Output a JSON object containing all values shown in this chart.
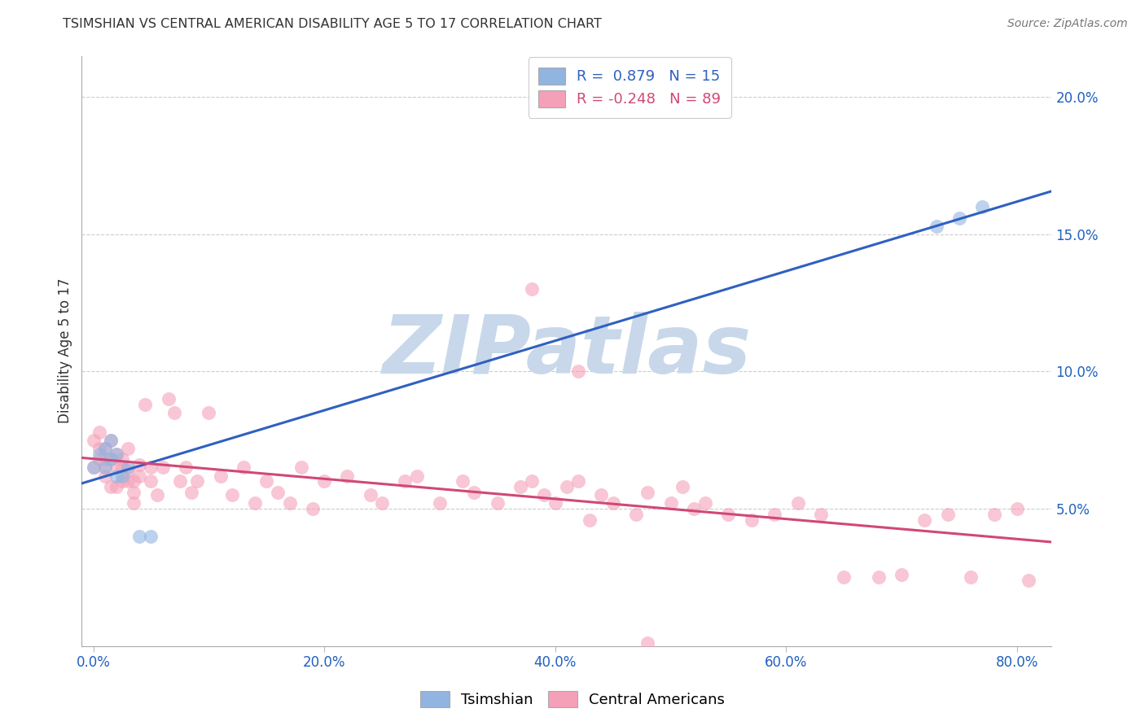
{
  "title": "TSIMSHIAN VS CENTRAL AMERICAN DISABILITY AGE 5 TO 17 CORRELATION CHART",
  "source": "Source: ZipAtlas.com",
  "ylabel": "Disability Age 5 to 17",
  "xlabel_ticks": [
    "0.0%",
    "20.0%",
    "40.0%",
    "60.0%",
    "80.0%"
  ],
  "xlabel_vals": [
    0.0,
    0.2,
    0.4,
    0.6,
    0.8
  ],
  "ylim": [
    0.0,
    0.215
  ],
  "xlim": [
    -0.01,
    0.83
  ],
  "ytick_vals": [
    0.05,
    0.1,
    0.15,
    0.2
  ],
  "ytick_labels": [
    "5.0%",
    "10.0%",
    "15.0%",
    "20.0%"
  ],
  "tsimshian_color": "#92b4e0",
  "central_american_color": "#f4a0b8",
  "tsimshian_line_color": "#3060c0",
  "central_american_line_color": "#d04878",
  "watermark": "ZIPatlas",
  "watermark_color": "#c8d8ea",
  "legend_label_blue": "R =  0.879   N = 15",
  "legend_label_pink": "R = -0.248   N = 89",
  "tsimshian_x": [
    0.0,
    0.005,
    0.01,
    0.01,
    0.015,
    0.015,
    0.02,
    0.02,
    0.025,
    0.03,
    0.04,
    0.05,
    0.73,
    0.75,
    0.77
  ],
  "tsimshian_y": [
    0.065,
    0.07,
    0.065,
    0.072,
    0.068,
    0.075,
    0.062,
    0.07,
    0.062,
    0.065,
    0.04,
    0.04,
    0.153,
    0.156,
    0.16
  ],
  "central_x": [
    0.0,
    0.0,
    0.005,
    0.005,
    0.005,
    0.01,
    0.01,
    0.01,
    0.01,
    0.015,
    0.015,
    0.015,
    0.02,
    0.02,
    0.02,
    0.025,
    0.025,
    0.025,
    0.03,
    0.03,
    0.03,
    0.035,
    0.035,
    0.035,
    0.04,
    0.04,
    0.045,
    0.05,
    0.05,
    0.055,
    0.06,
    0.065,
    0.07,
    0.075,
    0.08,
    0.085,
    0.09,
    0.1,
    0.11,
    0.12,
    0.13,
    0.14,
    0.15,
    0.16,
    0.17,
    0.18,
    0.19,
    0.2,
    0.22,
    0.24,
    0.25,
    0.27,
    0.28,
    0.3,
    0.32,
    0.33,
    0.35,
    0.37,
    0.38,
    0.39,
    0.4,
    0.41,
    0.42,
    0.43,
    0.44,
    0.45,
    0.47,
    0.48,
    0.5,
    0.51,
    0.52,
    0.53,
    0.55,
    0.57,
    0.59,
    0.61,
    0.63,
    0.65,
    0.68,
    0.7,
    0.72,
    0.74,
    0.76,
    0.78,
    0.8,
    0.81,
    0.38,
    0.42,
    0.48
  ],
  "central_y": [
    0.065,
    0.075,
    0.068,
    0.072,
    0.078,
    0.062,
    0.065,
    0.068,
    0.072,
    0.075,
    0.068,
    0.058,
    0.065,
    0.058,
    0.07,
    0.06,
    0.065,
    0.068,
    0.072,
    0.06,
    0.064,
    0.052,
    0.056,
    0.06,
    0.062,
    0.066,
    0.088,
    0.065,
    0.06,
    0.055,
    0.065,
    0.09,
    0.085,
    0.06,
    0.065,
    0.056,
    0.06,
    0.085,
    0.062,
    0.055,
    0.065,
    0.052,
    0.06,
    0.056,
    0.052,
    0.065,
    0.05,
    0.06,
    0.062,
    0.055,
    0.052,
    0.06,
    0.062,
    0.052,
    0.06,
    0.056,
    0.052,
    0.058,
    0.06,
    0.055,
    0.052,
    0.058,
    0.06,
    0.046,
    0.055,
    0.052,
    0.048,
    0.056,
    0.052,
    0.058,
    0.05,
    0.052,
    0.048,
    0.046,
    0.048,
    0.052,
    0.048,
    0.025,
    0.025,
    0.026,
    0.046,
    0.048,
    0.025,
    0.048,
    0.05,
    0.024,
    0.13,
    0.1,
    0.001
  ]
}
